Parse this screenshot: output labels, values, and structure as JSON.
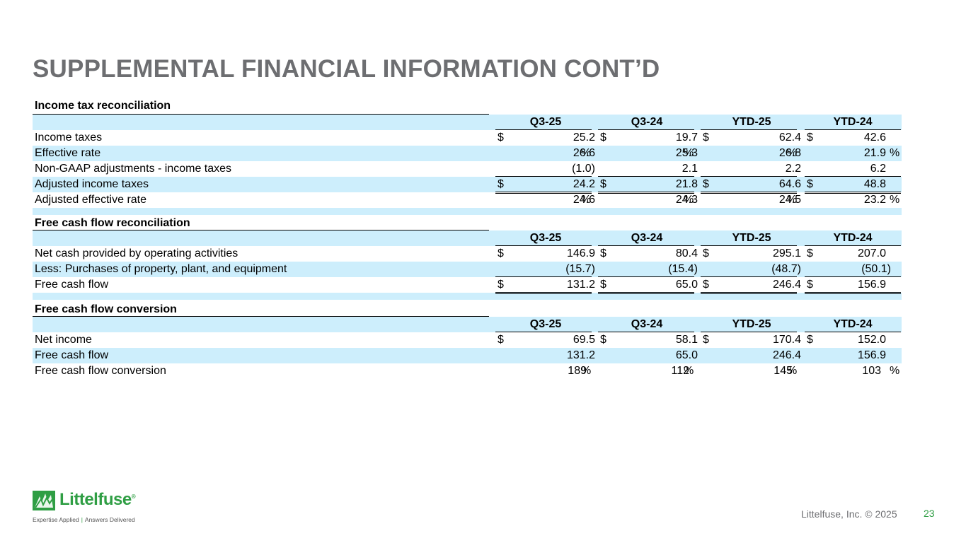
{
  "title": "SUPPLEMENTAL FINANCIAL INFORMATION CONT’D",
  "colors": {
    "accent_green": "#2f9e44",
    "row_shade": "#cdeefc",
    "title_gray": "#6d6e71"
  },
  "sections": [
    {
      "title": "Income tax reconciliation",
      "headers": [
        "Q3-25",
        "Q3-24",
        "YTD-25",
        "YTD-24"
      ],
      "rows": [
        {
          "label": "Income taxes",
          "values": [
            "25.2",
            "19.7",
            "62.4",
            "42.6"
          ],
          "dollar": true,
          "pct": false
        },
        {
          "label": "Effective rate",
          "values": [
            "26.6",
            "25.3",
            "26.8",
            "21.9"
          ],
          "dollar": false,
          "pct": true
        },
        {
          "label": "Non-GAAP adjustments - income taxes",
          "values": [
            "(1.0)",
            "2.1",
            "2.2",
            "6.2"
          ],
          "dollar": false,
          "pct": false
        },
        {
          "label": "Adjusted income taxes",
          "values": [
            "24.2",
            "21.8",
            "64.6",
            "48.8"
          ],
          "dollar": true,
          "pct": false
        },
        {
          "label": "Adjusted effective rate",
          "values": [
            "24.6",
            "24.3",
            "24.5",
            "23.2"
          ],
          "dollar": false,
          "pct": true
        }
      ]
    },
    {
      "title": "Free cash flow reconciliation",
      "headers": [
        "Q3-25",
        "Q3-24",
        "YTD-25",
        "YTD-24"
      ],
      "rows": [
        {
          "label": "Net cash provided by operating activities",
          "values": [
            "146.9",
            "80.4",
            "295.1",
            "207.0"
          ],
          "dollar": true,
          "pct": false
        },
        {
          "label": "Less: Purchases of property, plant, and equipment",
          "values": [
            "(15.7)",
            "(15.4)",
            "(48.7)",
            "(50.1)"
          ],
          "dollar": false,
          "pct": false
        },
        {
          "label": "Free cash flow",
          "values": [
            "131.2",
            "65.0",
            "246.4",
            "156.9"
          ],
          "dollar": true,
          "pct": false
        }
      ]
    },
    {
      "title": "Free cash flow conversion",
      "headers": [
        "Q3-25",
        "Q3-24",
        "YTD-25",
        "YTD-24"
      ],
      "rows": [
        {
          "label": "Net income",
          "values": [
            "69.5",
            "58.1",
            "170.4",
            "152.0"
          ],
          "dollar": true,
          "pct": false
        },
        {
          "label": "Free cash flow",
          "values": [
            "131.2",
            "65.0",
            "246.4",
            "156.9"
          ],
          "dollar": false,
          "pct": false
        },
        {
          "label": "Free cash flow conversion",
          "values": [
            "189",
            "112",
            "145",
            "103"
          ],
          "dollar": false,
          "pct": true
        }
      ]
    }
  ],
  "symbols": {
    "dollar": "$",
    "percent": "%"
  },
  "logo": {
    "name": "Littelfuse",
    "registered": "®",
    "tagline_left": "Expertise Applied",
    "tagline_sep": "|",
    "tagline_right": "Answers Delivered"
  },
  "footer": {
    "company": "Littelfuse, Inc. © 2025",
    "page_number": "23"
  }
}
